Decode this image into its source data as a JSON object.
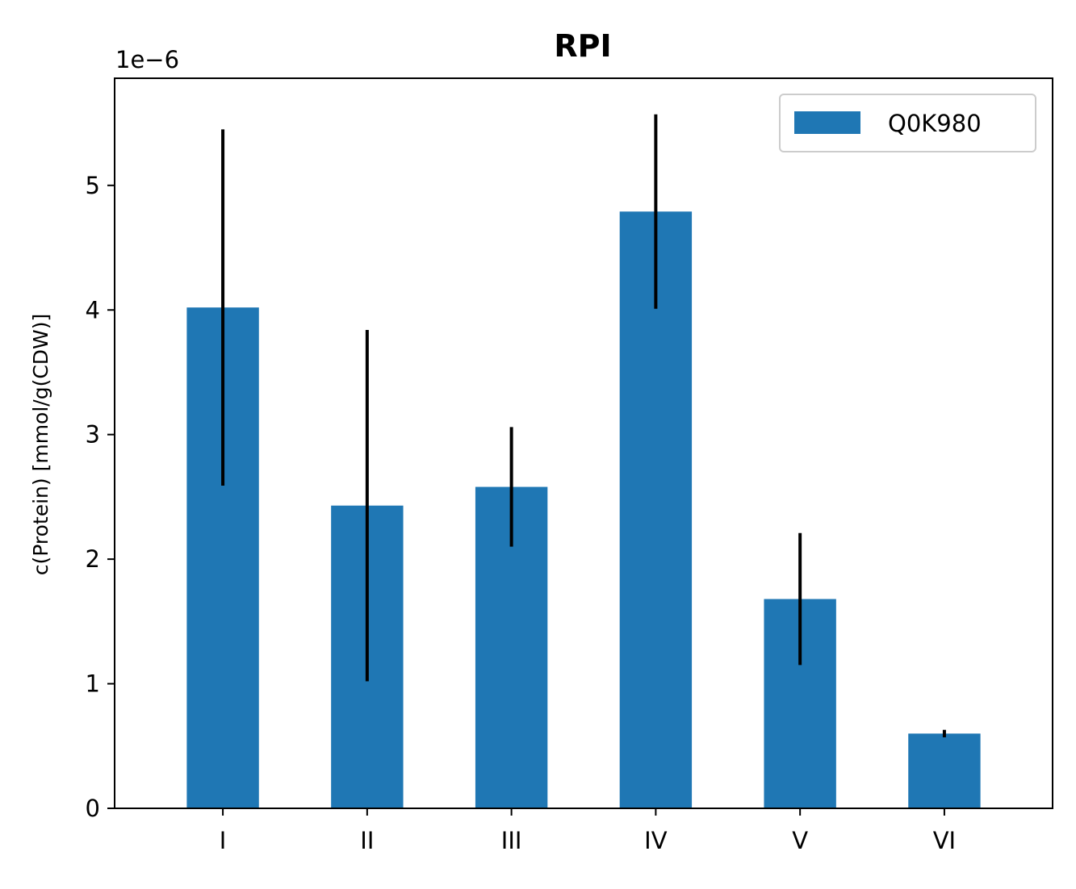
{
  "chart_data": {
    "type": "bar",
    "title": "RPI",
    "xlabel": "",
    "ylabel": "c(Protein) [mmol/g(CDW)]",
    "y_offset_label": "1e−6",
    "categories": [
      "I",
      "II",
      "III",
      "IV",
      "V",
      "VI"
    ],
    "series": [
      {
        "name": "Q0K980",
        "values": [
          4.02,
          2.43,
          2.58,
          4.79,
          1.68,
          0.6
        ],
        "errors": [
          1.43,
          1.41,
          0.48,
          0.78,
          0.53,
          0.03
        ]
      }
    ],
    "y_scale_exponent": -6,
    "ylim": [
      0,
      5.86
    ],
    "yticks": [
      0,
      1,
      2,
      3,
      4,
      5
    ],
    "grid": false,
    "legend_position": "top-right",
    "colors": {
      "bar": "#1f77b4",
      "error": "#000000"
    }
  }
}
